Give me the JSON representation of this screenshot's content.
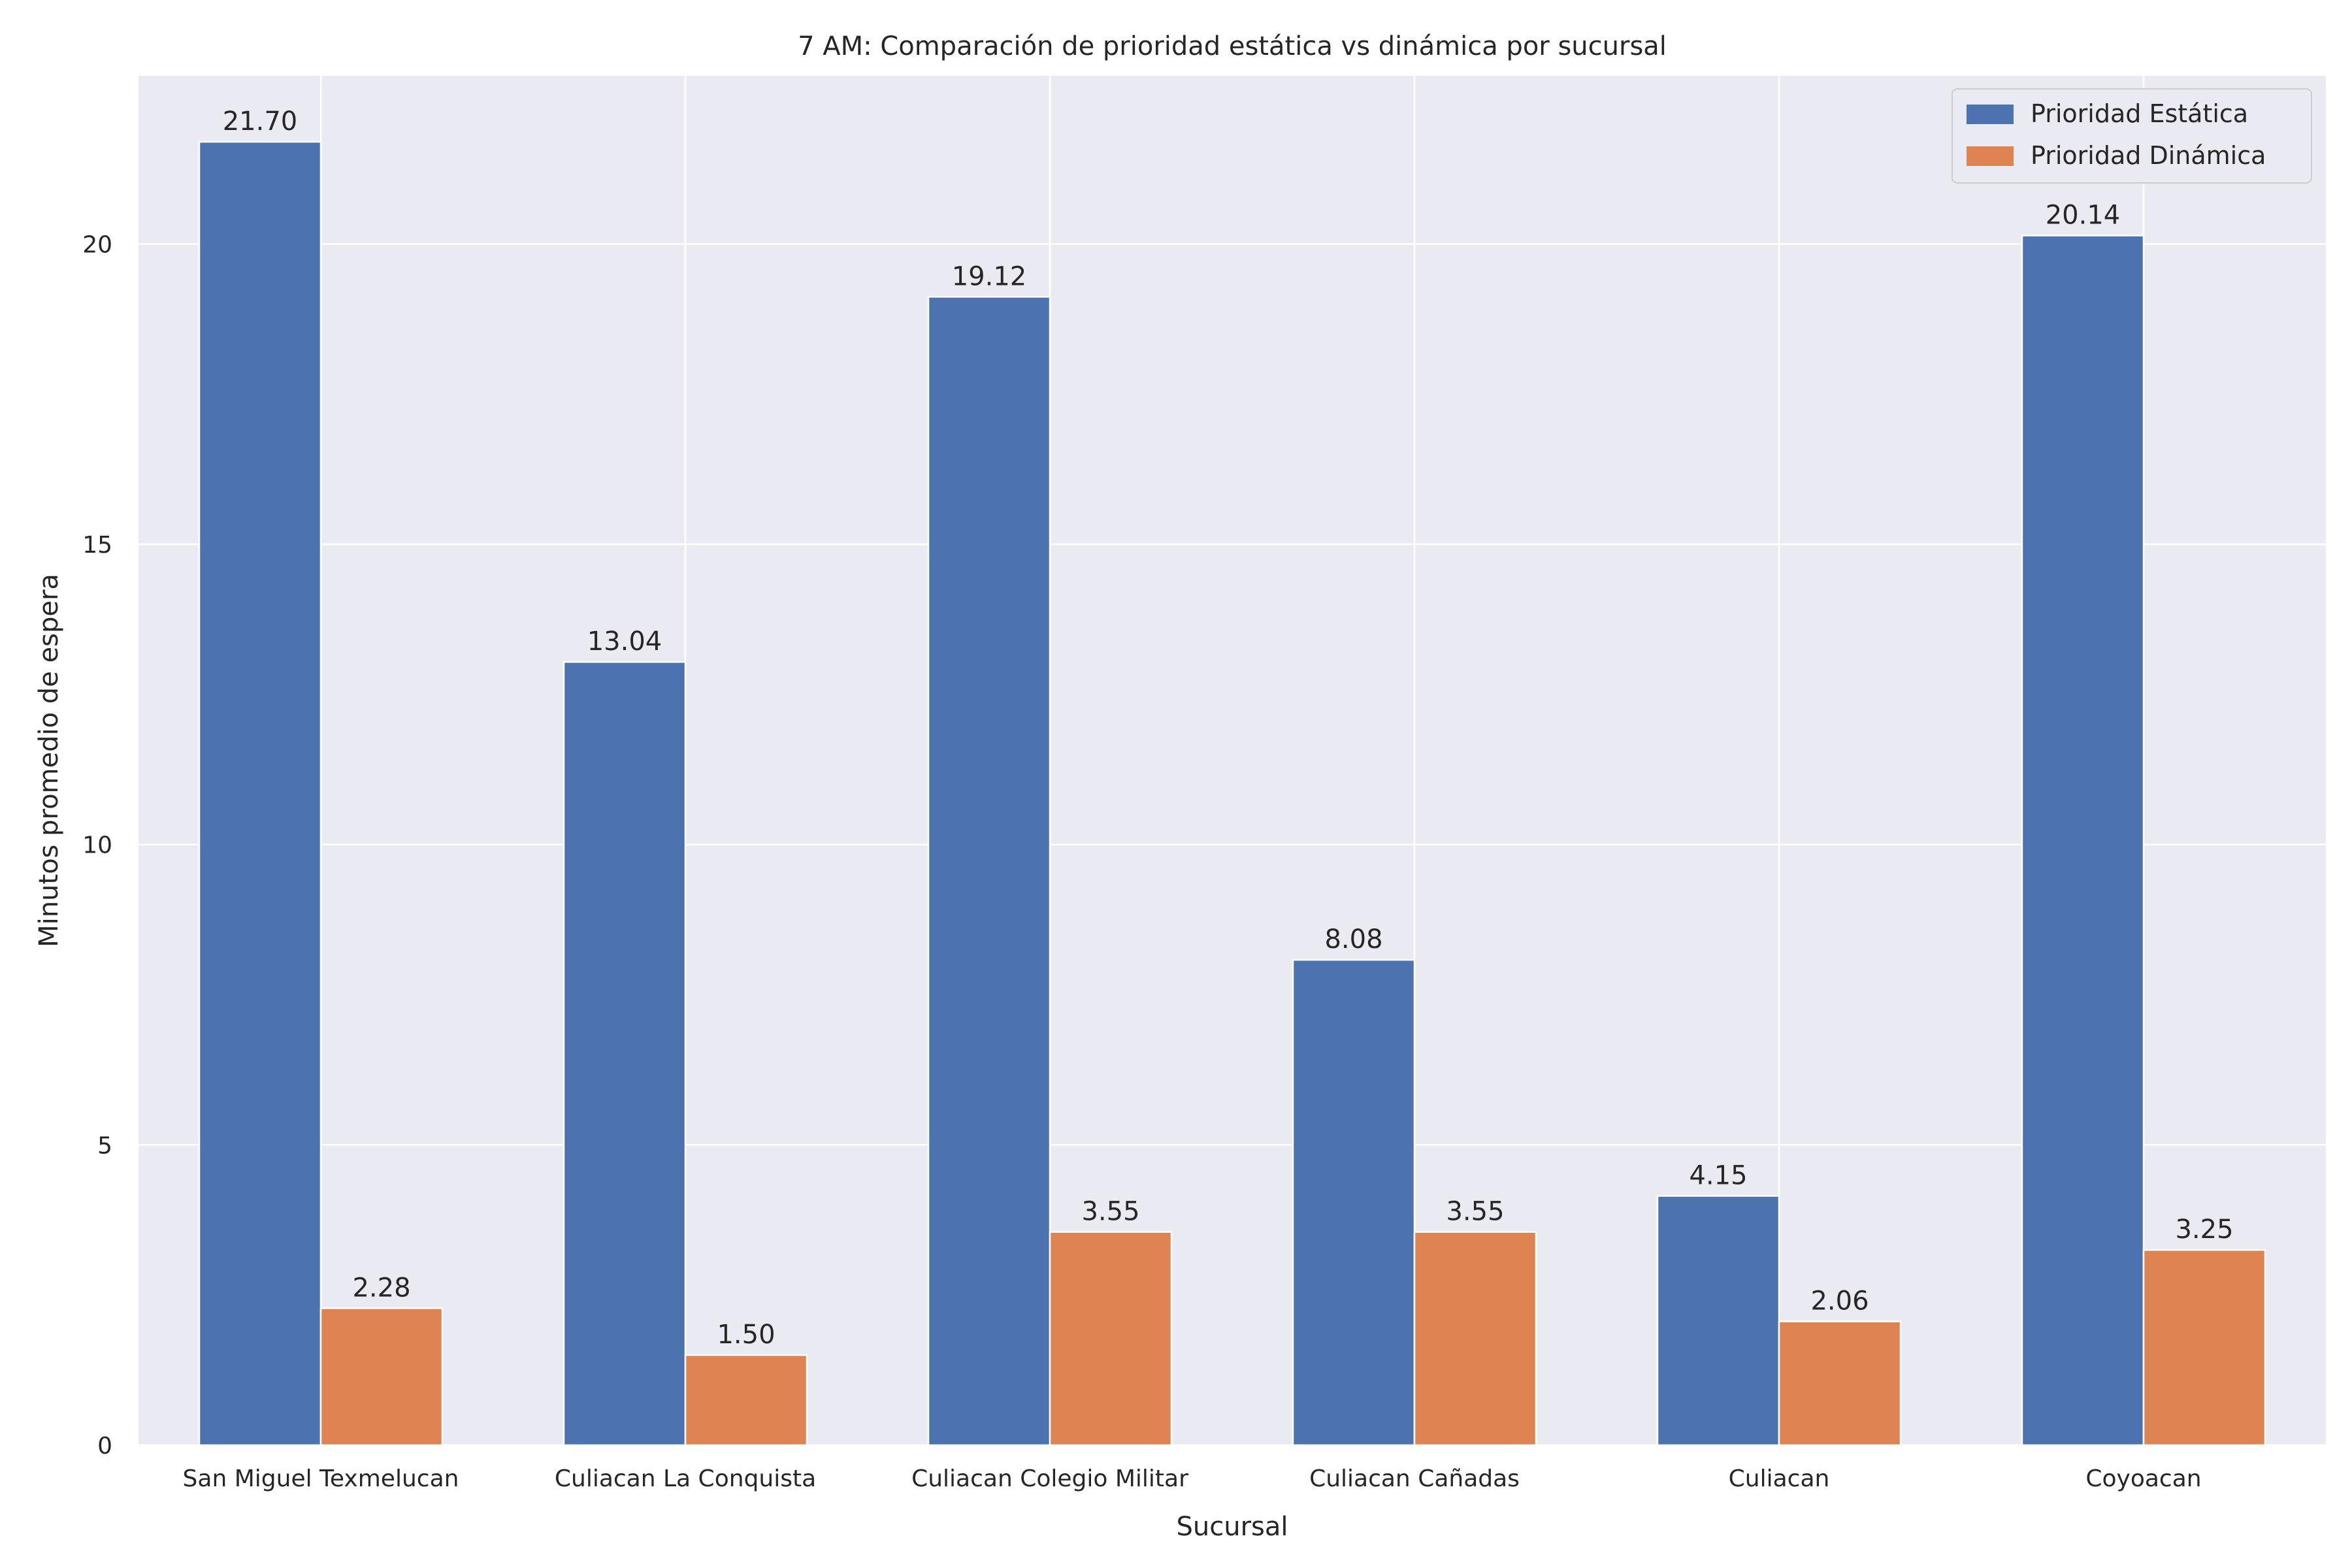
{
  "chart_data": {
    "type": "bar",
    "title": "7 AM: Comparación de prioridad estática vs dinámica por sucursal",
    "xlabel": "Sucursal",
    "ylabel": "Minutos promedio de espera",
    "categories": [
      "San Miguel Texmelucan",
      "Culiacan La Conquista",
      "Culiacan Colegio Militar",
      "Culiacan Cañadas",
      "Culiacan",
      "Coyoacan"
    ],
    "series": [
      {
        "name": "Prioridad Estática",
        "color": "#4c72b0",
        "values": [
          21.7,
          13.04,
          19.12,
          8.08,
          4.15,
          20.14
        ],
        "labels": [
          "21.70",
          "13.04",
          "19.12",
          "8.08",
          "4.15",
          "20.14"
        ]
      },
      {
        "name": "Prioridad Dinámica",
        "color": "#dd8452",
        "values": [
          2.28,
          1.5,
          3.55,
          3.55,
          2.06,
          3.25
        ],
        "labels": [
          "2.28",
          "1.50",
          "3.55",
          "3.55",
          "2.06",
          "3.25"
        ]
      }
    ],
    "ylim": [
      0,
      22.8
    ],
    "yticks": [
      0,
      5,
      10,
      15,
      20
    ],
    "ytick_labels": [
      "0",
      "5",
      "10",
      "15",
      "20"
    ],
    "grid": true,
    "legend_position": "top-right",
    "colors": {
      "background": "#eaeaf2",
      "grid": "#ffffff",
      "text": "#262626"
    }
  }
}
